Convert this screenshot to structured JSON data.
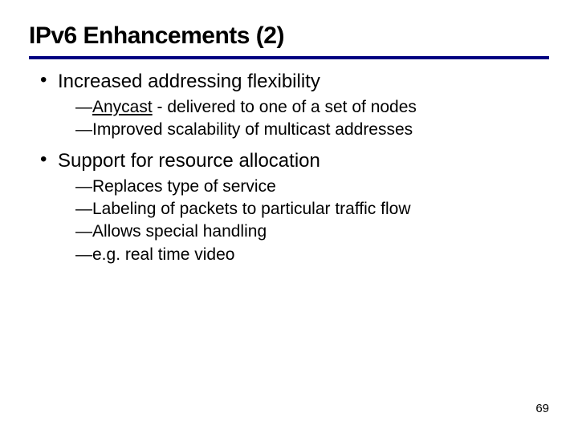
{
  "title": "IPv6 Enhancements (2)",
  "title_fontsize": 30,
  "title_color": "#000000",
  "rule_color": "#000080",
  "bullet_fontsize": 24,
  "subbullet_fontsize": 21,
  "dash_char": "—",
  "bullets": [
    {
      "text": "Increased addressing flexibility",
      "subs": [
        {
          "underlined": "Anycast",
          "rest": " - delivered to one of a set of nodes"
        },
        {
          "rest": "Improved scalability of multicast addresses"
        }
      ]
    },
    {
      "text": "Support for resource allocation",
      "subs": [
        {
          "rest": "Replaces type of service"
        },
        {
          "rest": "Labeling of packets to particular traffic flow"
        },
        {
          "rest": "Allows special handling"
        },
        {
          "rest": "e.g. real time video"
        }
      ]
    }
  ],
  "page_number": "69",
  "pagenum_fontsize": 15,
  "background_color": "#ffffff"
}
